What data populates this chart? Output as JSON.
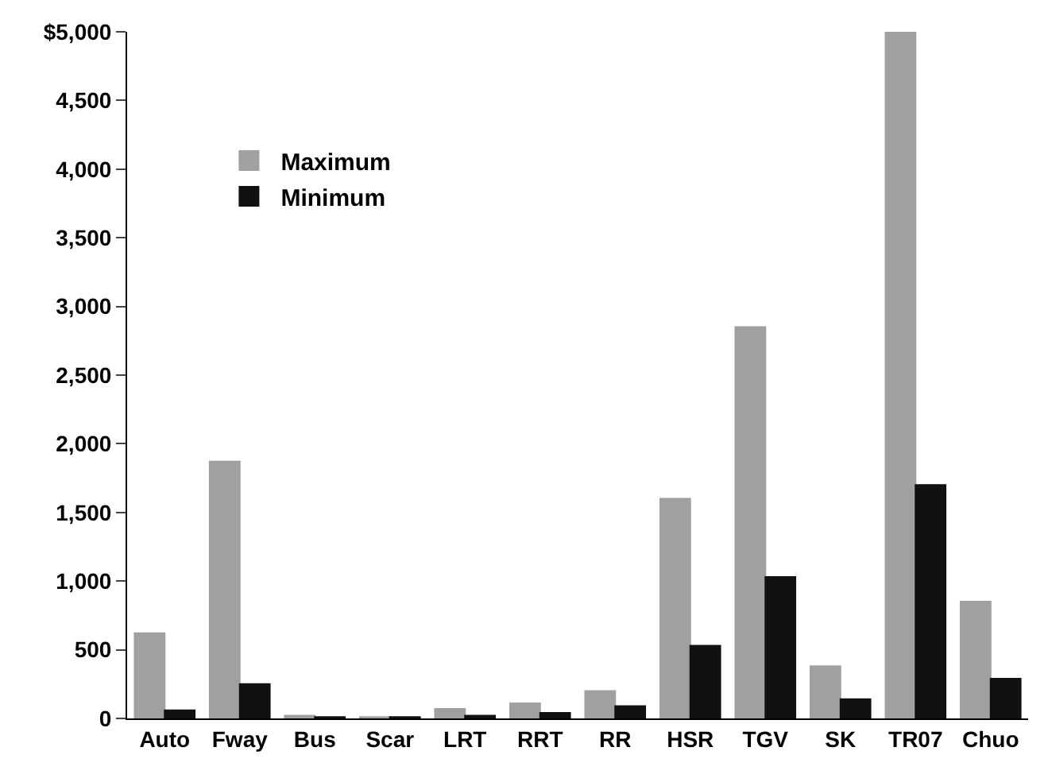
{
  "chart_data": {
    "type": "bar",
    "categories": [
      "Auto",
      "Fway",
      "Bus",
      "Scar",
      "LRT",
      "RRT",
      "RR",
      "HSR",
      "TGV",
      "SK",
      "TR07",
      "Chuo"
    ],
    "series": [
      {
        "name": "Maximum",
        "color": "#a0a0a0",
        "values": [
          620,
          1870,
          20,
          10,
          70,
          110,
          200,
          1600,
          2850,
          380,
          5000,
          850
        ]
      },
      {
        "name": "Minimum",
        "color": "#111111",
        "values": [
          60,
          250,
          10,
          10,
          20,
          40,
          90,
          530,
          1030,
          140,
          1700,
          290
        ]
      }
    ],
    "ylim": [
      0,
      5000
    ],
    "yticks": [
      0,
      500,
      {
        "value": 1000,
        "label": "1,000"
      },
      {
        "value": 1500,
        "label": "1,500"
      },
      {
        "value": 2000,
        "label": "2,000"
      },
      {
        "value": 2500,
        "label": "2,500"
      },
      {
        "value": 3000,
        "label": "3,000"
      },
      {
        "value": 3500,
        "label": "3,500"
      },
      {
        "value": 4000,
        "label": "4,000"
      },
      {
        "value": 4500,
        "label": "4,500"
      },
      {
        "value": 5000,
        "label": "$5,000"
      }
    ],
    "grid": false,
    "legend": "top left"
  }
}
